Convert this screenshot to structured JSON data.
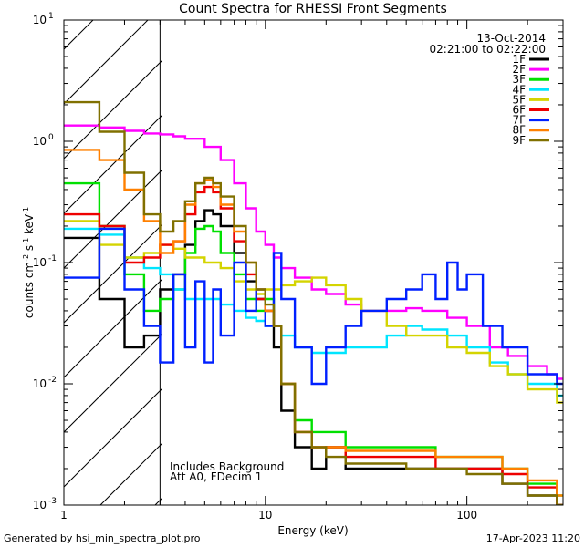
{
  "chart_data": {
    "type": "line",
    "title": "Count Spectra for RHESSI Front Segments",
    "xlabel": "Energy (keV)",
    "ylabel": "counts cm",
    "ylabel_sup1": "-2",
    "ylabel_mid": " s",
    "ylabel_sup2": "-1",
    "ylabel_mid2": " keV",
    "ylabel_sup3": "-1",
    "x_scale": "log",
    "y_scale": "log",
    "xlim": [
      1,
      300
    ],
    "ylim": [
      0.001,
      10
    ],
    "x_ticks": [
      {
        "value": 1,
        "label": "1"
      },
      {
        "value": 10,
        "label": "10"
      },
      {
        "value": 100,
        "label": "100"
      }
    ],
    "y_ticks": [
      {
        "value": 0.001,
        "base": "10",
        "exp": "-3"
      },
      {
        "value": 0.01,
        "base": "10",
        "exp": "-2"
      },
      {
        "value": 0.1,
        "base": "10",
        "exp": "-1"
      },
      {
        "value": 1,
        "base": "10",
        "exp": "0"
      },
      {
        "value": 10,
        "base": "10",
        "exp": "1"
      }
    ],
    "excluded_region": {
      "from": 1,
      "to": 3
    },
    "date": "13-Oct-2014",
    "time_range": "02:21:00 to 02:22:00",
    "annotations": [
      "Includes Background",
      "Att A0, FDecim 1"
    ],
    "footer_left": "Generated by hsi_min_spectra_plot.pro",
    "footer_right": "17-Apr-2023 11:20",
    "series": [
      {
        "name": "1F",
        "color": "#000000",
        "values": [
          [
            1.0,
            0.16
          ],
          [
            1.5,
            0.05
          ],
          [
            2.0,
            0.02
          ],
          [
            2.5,
            0.025
          ],
          [
            3.0,
            0.06
          ],
          [
            3.5,
            0.08
          ],
          [
            4.0,
            0.14
          ],
          [
            4.5,
            0.22
          ],
          [
            5.0,
            0.27
          ],
          [
            5.5,
            0.25
          ],
          [
            6.0,
            0.2
          ],
          [
            7.0,
            0.12
          ],
          [
            8.0,
            0.07
          ],
          [
            9.0,
            0.05
          ],
          [
            10.0,
            0.04
          ],
          [
            11.0,
            0.02
          ],
          [
            12.0,
            0.006
          ],
          [
            14.0,
            0.003
          ],
          [
            17.0,
            0.002
          ],
          [
            20.0,
            0.003
          ],
          [
            25.0,
            0.002
          ],
          [
            30.0,
            0.002
          ],
          [
            40.0,
            0.002
          ],
          [
            50.0,
            0.002
          ],
          [
            70.0,
            0.002
          ],
          [
            100.0,
            0.002
          ],
          [
            150.0,
            0.0015
          ],
          [
            200.0,
            0.0012
          ],
          [
            280.0,
            0.001
          ]
        ]
      },
      {
        "name": "2F",
        "color": "#ff00ff",
        "values": [
          [
            1.0,
            1.35
          ],
          [
            1.5,
            1.3
          ],
          [
            2.0,
            1.22
          ],
          [
            2.5,
            1.16
          ],
          [
            3.0,
            1.14
          ],
          [
            3.5,
            1.1
          ],
          [
            4.0,
            1.05
          ],
          [
            5.0,
            0.9
          ],
          [
            6.0,
            0.7
          ],
          [
            7.0,
            0.45
          ],
          [
            8.0,
            0.28
          ],
          [
            9.0,
            0.18
          ],
          [
            10.0,
            0.14
          ],
          [
            11.0,
            0.11
          ],
          [
            12.0,
            0.09
          ],
          [
            14.0,
            0.075
          ],
          [
            17.0,
            0.06
          ],
          [
            20.0,
            0.055
          ],
          [
            25.0,
            0.045
          ],
          [
            30.0,
            0.04
          ],
          [
            40.0,
            0.04
          ],
          [
            50.0,
            0.042
          ],
          [
            60.0,
            0.04
          ],
          [
            80.0,
            0.035
          ],
          [
            100.0,
            0.03
          ],
          [
            130.0,
            0.02
          ],
          [
            160.0,
            0.017
          ],
          [
            200.0,
            0.014
          ],
          [
            250.0,
            0.012
          ],
          [
            280.0,
            0.011
          ]
        ]
      },
      {
        "name": "3F",
        "color": "#00e000",
        "values": [
          [
            1.0,
            0.45
          ],
          [
            1.5,
            0.2
          ],
          [
            2.0,
            0.08
          ],
          [
            2.5,
            0.04
          ],
          [
            3.0,
            0.05
          ],
          [
            3.5,
            0.06
          ],
          [
            4.0,
            0.12
          ],
          [
            4.5,
            0.19
          ],
          [
            5.0,
            0.2
          ],
          [
            5.5,
            0.18
          ],
          [
            6.0,
            0.12
          ],
          [
            7.0,
            0.08
          ],
          [
            8.0,
            0.05
          ],
          [
            9.0,
            0.04
          ],
          [
            10.0,
            0.05
          ],
          [
            11.0,
            0.03
          ],
          [
            12.0,
            0.01
          ],
          [
            14.0,
            0.005
          ],
          [
            17.0,
            0.004
          ],
          [
            20.0,
            0.004
          ],
          [
            25.0,
            0.003
          ],
          [
            30.0,
            0.003
          ],
          [
            40.0,
            0.003
          ],
          [
            50.0,
            0.003
          ],
          [
            70.0,
            0.0025
          ],
          [
            100.0,
            0.0025
          ],
          [
            150.0,
            0.002
          ],
          [
            200.0,
            0.0015
          ],
          [
            280.0,
            0.0012
          ]
        ]
      },
      {
        "name": "4F",
        "color": "#00e5ff",
        "values": [
          [
            1.0,
            0.19
          ],
          [
            1.5,
            0.17
          ],
          [
            2.0,
            0.11
          ],
          [
            2.5,
            0.09
          ],
          [
            3.0,
            0.08
          ],
          [
            3.5,
            0.06
          ],
          [
            4.0,
            0.05
          ],
          [
            5.0,
            0.05
          ],
          [
            6.0,
            0.045
          ],
          [
            7.0,
            0.04
          ],
          [
            8.0,
            0.035
          ],
          [
            9.0,
            0.033
          ],
          [
            10.0,
            0.03
          ],
          [
            12.0,
            0.025
          ],
          [
            14.0,
            0.02
          ],
          [
            17.0,
            0.018
          ],
          [
            20.0,
            0.018
          ],
          [
            25.0,
            0.02
          ],
          [
            30.0,
            0.02
          ],
          [
            40.0,
            0.025
          ],
          [
            50.0,
            0.03
          ],
          [
            60.0,
            0.028
          ],
          [
            80.0,
            0.025
          ],
          [
            100.0,
            0.02
          ],
          [
            130.0,
            0.015
          ],
          [
            160.0,
            0.012
          ],
          [
            200.0,
            0.01
          ],
          [
            280.0,
            0.008
          ]
        ]
      },
      {
        "name": "5F",
        "color": "#d4d400",
        "values": [
          [
            1.0,
            0.22
          ],
          [
            1.5,
            0.14
          ],
          [
            2.0,
            0.11
          ],
          [
            2.5,
            0.12
          ],
          [
            3.0,
            0.14
          ],
          [
            3.5,
            0.13
          ],
          [
            4.0,
            0.11
          ],
          [
            5.0,
            0.1
          ],
          [
            6.0,
            0.09
          ],
          [
            7.0,
            0.07
          ],
          [
            8.0,
            0.06
          ],
          [
            9.0,
            0.055
          ],
          [
            10.0,
            0.06
          ],
          [
            12.0,
            0.065
          ],
          [
            14.0,
            0.07
          ],
          [
            17.0,
            0.075
          ],
          [
            20.0,
            0.065
          ],
          [
            25.0,
            0.05
          ],
          [
            30.0,
            0.04
          ],
          [
            40.0,
            0.03
          ],
          [
            50.0,
            0.025
          ],
          [
            60.0,
            0.025
          ],
          [
            80.0,
            0.02
          ],
          [
            100.0,
            0.018
          ],
          [
            130.0,
            0.014
          ],
          [
            160.0,
            0.012
          ],
          [
            200.0,
            0.009
          ],
          [
            280.0,
            0.007
          ]
        ]
      },
      {
        "name": "6F",
        "color": "#ee0000",
        "values": [
          [
            1.0,
            0.25
          ],
          [
            1.5,
            0.2
          ],
          [
            2.0,
            0.1
          ],
          [
            2.5,
            0.11
          ],
          [
            3.0,
            0.14
          ],
          [
            3.5,
            0.15
          ],
          [
            4.0,
            0.25
          ],
          [
            4.5,
            0.38
          ],
          [
            5.0,
            0.42
          ],
          [
            5.5,
            0.38
          ],
          [
            6.0,
            0.28
          ],
          [
            7.0,
            0.15
          ],
          [
            8.0,
            0.08
          ],
          [
            9.0,
            0.05
          ],
          [
            10.0,
            0.04
          ],
          [
            11.0,
            0.03
          ],
          [
            12.0,
            0.01
          ],
          [
            14.0,
            0.004
          ],
          [
            17.0,
            0.003
          ],
          [
            20.0,
            0.003
          ],
          [
            25.0,
            0.0025
          ],
          [
            30.0,
            0.0025
          ],
          [
            40.0,
            0.0025
          ],
          [
            50.0,
            0.0025
          ],
          [
            70.0,
            0.002
          ],
          [
            100.0,
            0.002
          ],
          [
            150.0,
            0.0018
          ],
          [
            200.0,
            0.0014
          ],
          [
            280.0,
            0.001
          ]
        ]
      },
      {
        "name": "7F",
        "color": "#0020ff",
        "values": [
          [
            1.0,
            0.075
          ],
          [
            1.5,
            0.19
          ],
          [
            2.0,
            0.06
          ],
          [
            2.5,
            0.03
          ],
          [
            3.0,
            0.015
          ],
          [
            3.5,
            0.08
          ],
          [
            4.0,
            0.02
          ],
          [
            4.5,
            0.07
          ],
          [
            5.0,
            0.015
          ],
          [
            5.5,
            0.06
          ],
          [
            6.0,
            0.025
          ],
          [
            7.0,
            0.1
          ],
          [
            8.0,
            0.04
          ],
          [
            9.0,
            0.06
          ],
          [
            10.0,
            0.03
          ],
          [
            11.0,
            0.12
          ],
          [
            12.0,
            0.05
          ],
          [
            14.0,
            0.02
          ],
          [
            17.0,
            0.01
          ],
          [
            20.0,
            0.02
          ],
          [
            25.0,
            0.03
          ],
          [
            30.0,
            0.04
          ],
          [
            40.0,
            0.05
          ],
          [
            50.0,
            0.06
          ],
          [
            60.0,
            0.08
          ],
          [
            70.0,
            0.05
          ],
          [
            80.0,
            0.1
          ],
          [
            90.0,
            0.06
          ],
          [
            100.0,
            0.08
          ],
          [
            120.0,
            0.03
          ],
          [
            150.0,
            0.02
          ],
          [
            200.0,
            0.012
          ],
          [
            280.0,
            0.01
          ]
        ]
      },
      {
        "name": "8F",
        "color": "#ff8000",
        "values": [
          [
            1.0,
            0.85
          ],
          [
            1.5,
            0.7
          ],
          [
            2.0,
            0.4
          ],
          [
            2.5,
            0.22
          ],
          [
            3.0,
            0.12
          ],
          [
            3.5,
            0.15
          ],
          [
            4.0,
            0.3
          ],
          [
            4.5,
            0.45
          ],
          [
            5.0,
            0.48
          ],
          [
            5.5,
            0.42
          ],
          [
            6.0,
            0.3
          ],
          [
            7.0,
            0.18
          ],
          [
            8.0,
            0.1
          ],
          [
            9.0,
            0.06
          ],
          [
            10.0,
            0.04
          ],
          [
            11.0,
            0.03
          ],
          [
            12.0,
            0.01
          ],
          [
            14.0,
            0.004
          ],
          [
            17.0,
            0.003
          ],
          [
            20.0,
            0.003
          ],
          [
            25.0,
            0.0028
          ],
          [
            30.0,
            0.0028
          ],
          [
            40.0,
            0.0028
          ],
          [
            50.0,
            0.0028
          ],
          [
            70.0,
            0.0025
          ],
          [
            100.0,
            0.0025
          ],
          [
            150.0,
            0.002
          ],
          [
            200.0,
            0.0016
          ],
          [
            280.0,
            0.0012
          ]
        ]
      },
      {
        "name": "9F",
        "color": "#807000",
        "values": [
          [
            1.0,
            2.1
          ],
          [
            1.5,
            1.2
          ],
          [
            2.0,
            0.55
          ],
          [
            2.5,
            0.25
          ],
          [
            3.0,
            0.18
          ],
          [
            3.5,
            0.22
          ],
          [
            4.0,
            0.32
          ],
          [
            4.5,
            0.45
          ],
          [
            5.0,
            0.5
          ],
          [
            5.5,
            0.45
          ],
          [
            6.0,
            0.35
          ],
          [
            7.0,
            0.2
          ],
          [
            8.0,
            0.1
          ],
          [
            9.0,
            0.06
          ],
          [
            10.0,
            0.045
          ],
          [
            11.0,
            0.03
          ],
          [
            12.0,
            0.01
          ],
          [
            14.0,
            0.004
          ],
          [
            17.0,
            0.003
          ],
          [
            20.0,
            0.0025
          ],
          [
            25.0,
            0.0022
          ],
          [
            30.0,
            0.0022
          ],
          [
            40.0,
            0.0022
          ],
          [
            50.0,
            0.002
          ],
          [
            70.0,
            0.002
          ],
          [
            100.0,
            0.0018
          ],
          [
            150.0,
            0.0015
          ],
          [
            200.0,
            0.0012
          ],
          [
            280.0,
            0.001
          ]
        ]
      }
    ]
  }
}
